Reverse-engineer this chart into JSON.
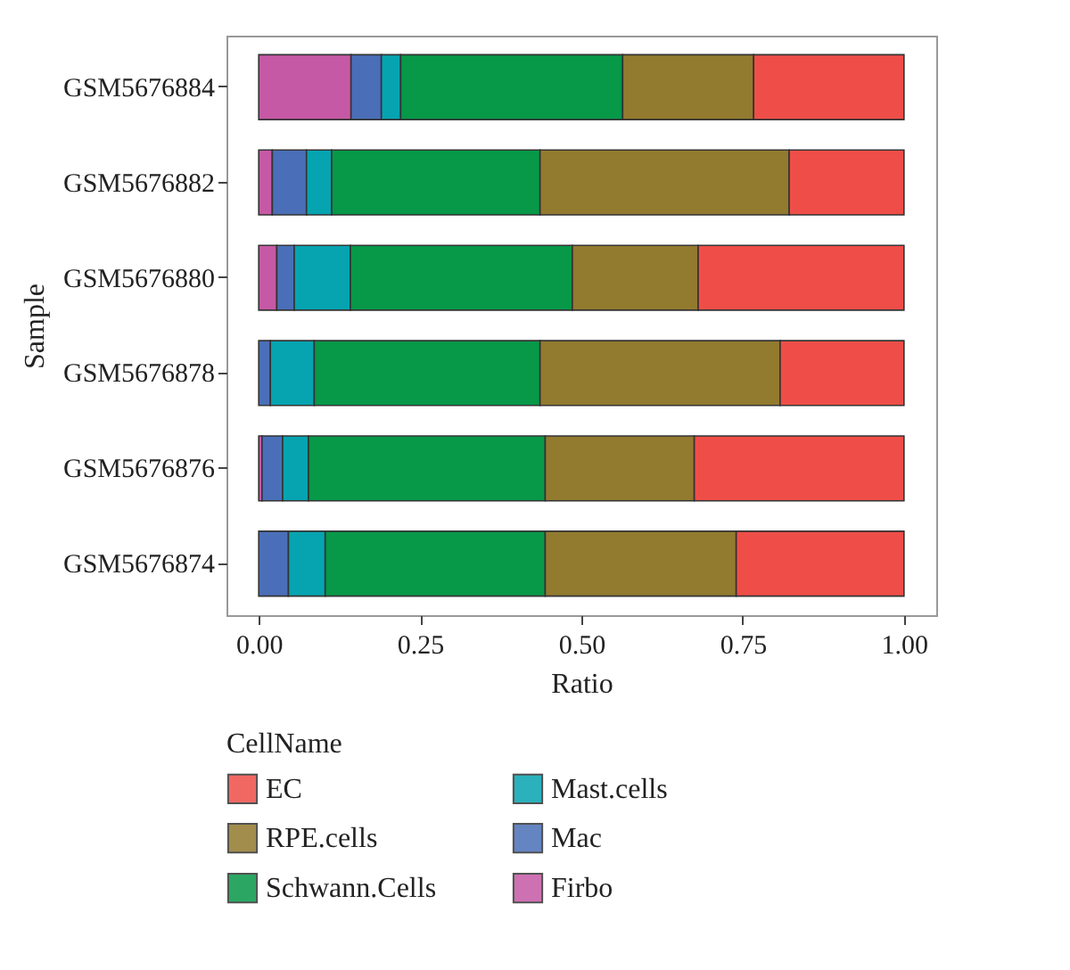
{
  "chart_data": {
    "type": "bar",
    "orientation": "horizontal",
    "stacked": true,
    "xlabel": "Ratio",
    "ylabel": "Sample",
    "legend_title": "CellName",
    "legend": "bottom",
    "grid": false,
    "categories": [
      "GSM5676884",
      "GSM5676882",
      "GSM5676880",
      "GSM5676878",
      "GSM5676876",
      "GSM5676874"
    ],
    "xlim": [
      -0.05,
      1.05
    ],
    "xticks": [
      {
        "value": 0,
        "label": "0.00"
      },
      {
        "value": 0.25,
        "label": "0.25"
      },
      {
        "value": 0.5,
        "label": "0.50"
      },
      {
        "value": 0.75,
        "label": "0.75"
      },
      {
        "value": 1,
        "label": "1.00"
      }
    ],
    "series": [
      {
        "name": "Firbo",
        "color": "#c659a5",
        "values": [
          0.143,
          0.021,
          0.028,
          0,
          0.005,
          0
        ]
      },
      {
        "name": "Mac",
        "color": "#4a6fb8",
        "values": [
          0.047,
          0.053,
          0.027,
          0.018,
          0.032,
          0.046
        ]
      },
      {
        "name": "Mast.cells",
        "color": "#06a4b0",
        "values": [
          0.03,
          0.039,
          0.087,
          0.068,
          0.04,
          0.057
        ]
      },
      {
        "name": "Schwann.Cells",
        "color": "#079848",
        "values": [
          0.344,
          0.323,
          0.344,
          0.35,
          0.367,
          0.341
        ]
      },
      {
        "name": "RPE.cells",
        "color": "#927a2f",
        "values": [
          0.203,
          0.386,
          0.195,
          0.372,
          0.231,
          0.296
        ]
      },
      {
        "name": "EC",
        "color": "#ef4e48",
        "values": [
          0.233,
          0.178,
          0.319,
          0.192,
          0.325,
          0.26
        ]
      }
    ]
  }
}
